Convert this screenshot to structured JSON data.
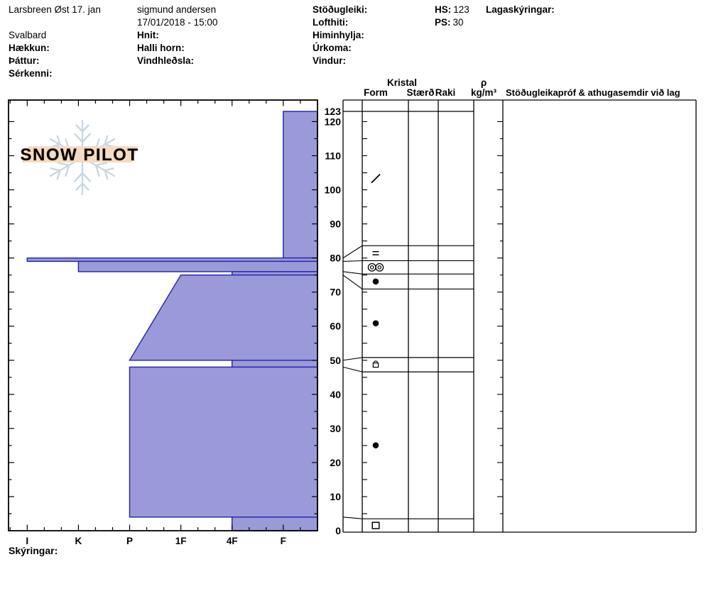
{
  "header": {
    "pit_title": "Larsbreen Øst 17. jan",
    "region": "Svalbard",
    "observer": "sigmund andersen",
    "datetime": "17/01/2018 - 15:00",
    "hs_value": "123",
    "ps_value": "30",
    "labels": {
      "elevation": "Hækkun:",
      "aspect": "Þáttur:",
      "feature": "Sérkenni:",
      "coords": "Hnit:",
      "slope_angle": "Halli horn:",
      "wind_loading": "Vindhleðsla:",
      "stability": "Stöðugleiki:",
      "air_temp": "Lofthiti:",
      "sky_cover": "Himinhylja:",
      "precip": "Úrkoma:",
      "wind": "Vindur:",
      "hs": "HS:",
      "ps": "PS:",
      "layer_notes": "Lagaskýringar:"
    }
  },
  "table_headers": {
    "kristal": "Kristal",
    "form": "Form",
    "size": "Stærð",
    "wetness": "Raki",
    "density": "ρ",
    "density_units": "kg/m³",
    "stability_tests": "Stöðugleikapróf & athugasemdir við lag"
  },
  "footer": {
    "legend": "Skýringar:"
  },
  "logo": {
    "text": "SNOW PILOT"
  },
  "chart_data": {
    "type": "bar",
    "subtype": "snow-hardness-profile",
    "title": "Larsbreen Øst 17. jan",
    "depth_axis": {
      "unit": "cm",
      "min": 0,
      "max": 123,
      "tick_labels": [
        123,
        120,
        110,
        100,
        90,
        80,
        70,
        60,
        50,
        40,
        30,
        20,
        10,
        0
      ],
      "minor_step": 5
    },
    "hardness_axis": {
      "categories": [
        "I",
        "K",
        "P",
        "1F",
        "4F",
        "F"
      ],
      "orientation": "hard-left-to-soft-right"
    },
    "hs": 123,
    "ps": 30,
    "layers": [
      {
        "top_cm": 123,
        "bottom_cm": 80,
        "hardness": "F",
        "grain_symbol": "slash"
      },
      {
        "top_cm": 80,
        "bottom_cm": 79,
        "hardness": "I",
        "grain_symbol": "double-bar"
      },
      {
        "top_cm": 79,
        "bottom_cm": 76,
        "hardness": "K",
        "grain_symbol": "double-circle"
      },
      {
        "top_cm": 76,
        "bottom_cm": 75,
        "hardness": "4F",
        "grain_symbol": "dot"
      },
      {
        "top_cm": 75,
        "bottom_cm": 50,
        "hardness_top": "1F",
        "hardness_bottom": "P",
        "grain_symbol": "dot"
      },
      {
        "top_cm": 50,
        "bottom_cm": 48,
        "hardness": "4F",
        "grain_symbol": "square-arc"
      },
      {
        "top_cm": 48,
        "bottom_cm": 4,
        "hardness": "P",
        "grain_symbol": "dot"
      },
      {
        "top_cm": 4,
        "bottom_cm": 0,
        "hardness": "4F",
        "grain_symbol": "square"
      }
    ],
    "display_band_boundaries_cm": [
      123,
      83.6,
      79.2,
      75.3,
      70.9,
      50.8,
      46.6,
      3.5,
      0
    ],
    "colors": {
      "layer_fill": "#9b9ad8",
      "layer_stroke": "#2a2ab2",
      "line": "#000000",
      "logo_snowflake": "#c9d7e2",
      "logo_banner": "#f4dcc3",
      "logo_text_fill": "#fdf9f2",
      "logo_text_outline": "#dcb68f"
    }
  }
}
